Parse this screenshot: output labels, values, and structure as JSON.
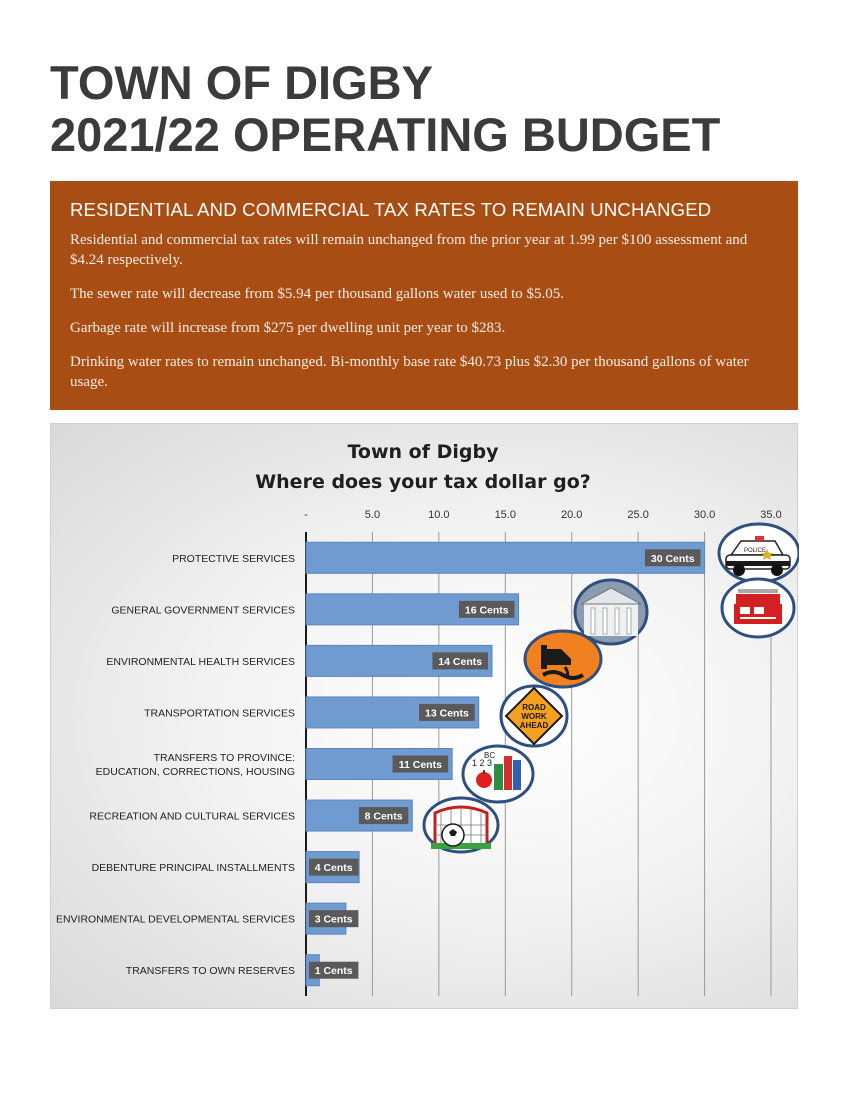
{
  "header": {
    "title_line1": "TOWN OF DIGBY",
    "title_line2": "2021/22 OPERATING BUDGET"
  },
  "notice": {
    "heading": "RESIDENTIAL AND COMMERCIAL TAX RATES TO REMAIN UNCHANGED",
    "paragraphs": [
      "Residential and commercial tax rates will remain unchanged from the prior year at 1.99 per $100 assessment and $4.24 respectively.",
      "The sewer rate will decrease from $5.94 per thousand gallons water used to $5.05.",
      "Garbage rate will increase from $275 per dwelling unit per year to $283.",
      "Drinking water rates to remain unchanged.  Bi-monthly base rate $40.73 plus $2.30 per thousand gallons of water usage."
    ],
    "background_color": "#a84e14"
  },
  "chart_data": {
    "type": "bar",
    "orientation": "horizontal",
    "title": "Town of Digby",
    "subtitle": "Where does your tax dollar go?",
    "categories": [
      "PROTECTIVE SERVICES",
      "GENERAL GOVERNMENT SERVICES",
      "ENVIRONMENTAL HEALTH SERVICES",
      "TRANSPORTATION SERVICES",
      "TRANSFERS TO PROVINCE:\nEDUCATION, CORRECTIONS, HOUSING",
      "RECREATION AND CULTURAL SERVICES",
      "DEBENTURE PRINCIPAL INSTALLMENTS",
      "ENVIRONMENTAL DEVELOPMENTAL SERVICES",
      "TRANSFERS TO OWN RESERVES"
    ],
    "values": [
      30,
      16,
      14,
      13,
      11,
      8,
      4,
      3,
      1
    ],
    "data_labels": [
      "30 Cents",
      "16 Cents",
      "14 Cents",
      "13 Cents",
      "11 Cents",
      "8 Cents",
      "4 Cents",
      "3 Cents",
      "1 Cents"
    ],
    "xlim": [
      0,
      35
    ],
    "x_ticks": [
      0,
      5,
      10,
      15,
      20,
      25,
      30,
      35
    ],
    "x_tick_labels": [
      "-",
      "5.0",
      "10.0",
      "15.0",
      "20.0",
      "25.0",
      "30.0",
      "35.0"
    ],
    "axis_position": "top",
    "grid": true,
    "bar_color": "#6f9bd0",
    "label_box_color": "#5a5a5a",
    "icons": [
      "police-car-icon",
      "fire-truck-icon",
      "town-hall-icon",
      "sewer-pipe-icon",
      "road-work-sign-icon",
      "school-books-icon",
      "soccer-net-icon"
    ]
  }
}
